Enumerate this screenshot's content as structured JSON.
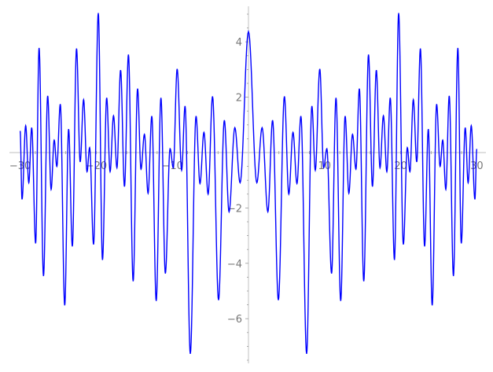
{
  "chart_data": {
    "type": "line",
    "title": "",
    "xlabel": "",
    "ylabel": "",
    "xlim": [
      -30,
      30
    ],
    "ylim": [
      -7.3,
      5.1
    ],
    "grid": false,
    "x_ticks": [
      -30,
      -20,
      -10,
      10,
      20,
      30
    ],
    "y_ticks": [
      -6,
      -4,
      -2,
      2,
      4
    ],
    "x_tick_labels": [
      "−30",
      "−20",
      "−10",
      "10",
      "20",
      "30"
    ],
    "y_tick_labels": [
      "−6",
      "−4",
      "−2",
      "2",
      "4"
    ],
    "colors": {
      "line": "#0000ff",
      "axis": "#cccccc",
      "tick_label": "#777777"
    },
    "series": [
      {
        "x": [
          -30,
          -29.75,
          -29.27,
          -28.86,
          -28.48,
          -27.96,
          -27.51,
          -26.93,
          -26.38,
          -25.93,
          -25.52,
          -25.18,
          -24.72,
          -24.14,
          -23.63,
          -23.14,
          -22.59,
          -22.11,
          -21.66,
          -21.21,
          -20.87,
          -20.35,
          -19.73,
          -19.18,
          -18.63,
          -18.18,
          -17.73,
          -17.28,
          -16.8,
          -16.29,
          -15.77,
          -15.15,
          -14.57,
          -14.12,
          -13.67,
          -13.19,
          -12.7,
          -12.12,
          -11.5,
          -10.92,
          -10.3,
          -9.88,
          -9.37,
          -8.78,
          -8.33,
          -7.64,
          -6.89,
          -6.37,
          -5.85,
          -5.3,
          -4.72,
          -3.93,
          -3.17,
          -2.55,
          -1.79,
          -1.1,
          0,
          1.1,
          1.79,
          2.55,
          3.17,
          3.93,
          4.72,
          5.3,
          5.85,
          6.37,
          6.89,
          7.64,
          8.33,
          8.78,
          9.37,
          9.88,
          10.3,
          10.92,
          11.5,
          12.12,
          12.7,
          13.19,
          13.67,
          14.12,
          14.57,
          15.15,
          15.77,
          16.29,
          16.8,
          17.28,
          17.73,
          18.18,
          18.63,
          19.18,
          19.73,
          20.35,
          20.87,
          21.21,
          21.66,
          22.11,
          22.59,
          23.14,
          23.63,
          24.14,
          24.72,
          25.18,
          25.52,
          25.93,
          26.38,
          26.93,
          27.51,
          27.96,
          28.48,
          28.86,
          29.27,
          29.75,
          30
        ],
        "y": [
          0.78,
          -1.69,
          0.97,
          -1.09,
          0.9,
          -3.28,
          3.78,
          -4.46,
          2.05,
          -1.33,
          0.45,
          -0.5,
          1.75,
          -5.52,
          0.85,
          -3.39,
          3.76,
          -0.34,
          1.91,
          -0.69,
          0.18,
          -3.32,
          5.04,
          -3.88,
          1.98,
          -0.69,
          1.33,
          -0.55,
          2.98,
          -1.23,
          3.54,
          -4.65,
          2.31,
          -0.6,
          0.66,
          -1.47,
          1.32,
          -5.36,
          1.98,
          -4.37,
          0.14,
          -0.55,
          3.02,
          -0.64,
          1.68,
          -7.27,
          1.32,
          -1.12,
          0.73,
          -1.5,
          2.03,
          -5.33,
          1.17,
          -2.14,
          0.9,
          -1.09,
          4.37,
          -1.09,
          0.9,
          -2.14,
          1.17,
          -5.33,
          2.03,
          -1.5,
          0.73,
          -1.12,
          1.32,
          -7.27,
          1.68,
          -0.64,
          3.02,
          -0.55,
          0.14,
          -4.37,
          1.98,
          -5.36,
          1.32,
          -1.47,
          0.66,
          -0.6,
          2.31,
          -4.65,
          3.54,
          -1.23,
          2.98,
          -0.55,
          1.33,
          -0.69,
          1.98,
          -3.88,
          5.04,
          -3.32,
          0.18,
          -0.69,
          1.91,
          -0.34,
          3.76,
          -3.39,
          0.85,
          -5.52,
          1.75,
          -0.5,
          0.45,
          -1.33,
          2.05,
          -4.46,
          3.78,
          -3.28,
          0.9,
          -1.09,
          0.97,
          -1.69,
          0.13
        ]
      }
    ]
  }
}
